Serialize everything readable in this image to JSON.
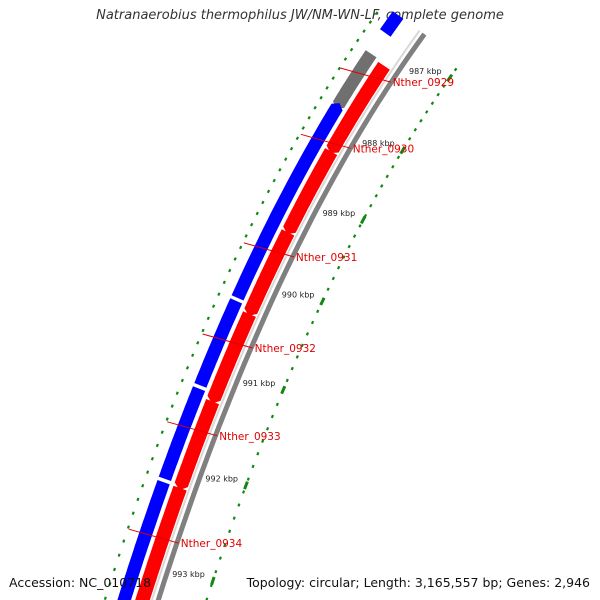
{
  "title": "Natranaerobius thermophilus JW/NM-WN-LF, complete genome",
  "footer": {
    "accession": "Accession: NC_010718",
    "summary": "Topology: circular; Length: 3,165,557 bp; Genes: 2,946"
  },
  "colors": {
    "backbone": "#808080",
    "forward_strand": "#ff0000",
    "reverse_strand": "#0000ff",
    "highlight_gene": "#707070",
    "gc_ticks": "#118811",
    "label": "#e00000"
  },
  "scale_ticks": [
    "987 kbp",
    "988 kbp",
    "989 kbp",
    "990 kbp",
    "991 kbp",
    "992 kbp",
    "993 kbp"
  ],
  "gene_labels": [
    "Nther_0929",
    "Nther_0930",
    "Nther_0931",
    "Nther_0932",
    "Nther_0933",
    "Nther_0934"
  ]
}
